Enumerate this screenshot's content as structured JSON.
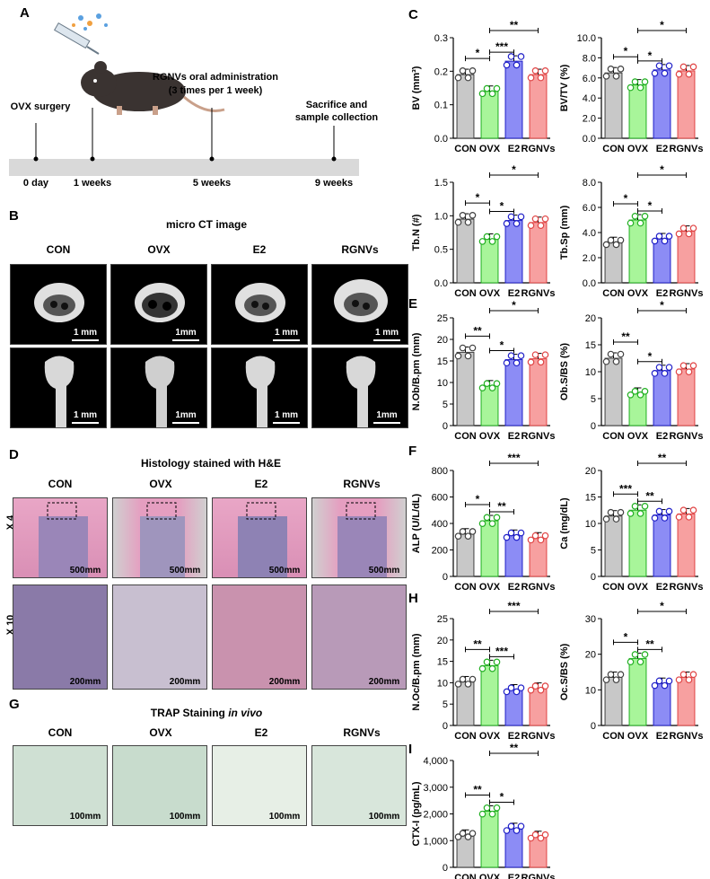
{
  "panels": {
    "A": "A",
    "B": "B",
    "C": "C",
    "D": "D",
    "E": "E",
    "F": "F",
    "G": "G",
    "H": "H",
    "I": "I"
  },
  "timeline": {
    "events": [
      "OVX surgery",
      "RGNVs oral administration",
      "(3 times per 1 week)",
      "Sacrifice and",
      "sample collection"
    ],
    "ticks": [
      "0 day",
      "1 weeks",
      "5 weeks",
      "9 weeks"
    ]
  },
  "microct": {
    "title": "micro CT image",
    "groups": [
      "CON",
      "OVX",
      "E2",
      "RGNVs"
    ],
    "scale_top": [
      "1 mm",
      "1mm",
      "1 mm",
      "1 mm"
    ],
    "scale_bottom": [
      "1 mm",
      "1mm",
      "1 mm",
      "1mm"
    ]
  },
  "histology": {
    "title": "Histology stained with H&E",
    "groups": [
      "CON",
      "OVX",
      "E2",
      "RGNVs"
    ],
    "row_labels": [
      "X 4",
      "X 10"
    ],
    "scale_top": "500mm",
    "scale_bottom": "200mm"
  },
  "trap": {
    "title_main": "TRAP Staining ",
    "title_italic": "in vivo",
    "groups": [
      "CON",
      "OVX",
      "E2",
      "RGNVs"
    ],
    "scale": "100mm"
  },
  "colors": {
    "CON": "#c8c8c8",
    "OVX": "#a8f59a",
    "E2": "#8c8cf5",
    "RGNVs": "#f7a0a0",
    "edge_CON": "#404040",
    "edge_OVX": "#22b022",
    "edge_E2": "#2020c8",
    "edge_RGNVs": "#e04444"
  },
  "chart_data": [
    {
      "id": "BV",
      "type": "bar",
      "ylabel": "BV (mm³)",
      "categories": [
        "CON",
        "OVX",
        "E2",
        "RGNVs"
      ],
      "values": [
        0.19,
        0.14,
        0.23,
        0.19
      ],
      "ylim": [
        0,
        0.3
      ],
      "yticks": [
        "0.0",
        "0.1",
        "0.2",
        "0.3"
      ],
      "sig": [
        {
          "from": 0,
          "to": 1,
          "label": "*"
        },
        {
          "from": 1,
          "to": 2,
          "label": "***"
        },
        {
          "from": 1,
          "to": 3,
          "label": "**"
        }
      ]
    },
    {
      "id": "BVTV",
      "type": "bar",
      "ylabel": "BV/TV (%)",
      "categories": [
        "CON",
        "OVX",
        "E2",
        "RGNVs"
      ],
      "values": [
        6.5,
        5.3,
        6.8,
        6.7
      ],
      "ylim": [
        0,
        10
      ],
      "yticks": [
        "0.0",
        "2.0",
        "4.0",
        "6.0",
        "8.0",
        "10.0"
      ],
      "sig": [
        {
          "from": 0,
          "to": 1,
          "label": "*"
        },
        {
          "from": 1,
          "to": 2,
          "label": "*"
        },
        {
          "from": 1,
          "to": 3,
          "label": "*"
        }
      ]
    },
    {
      "id": "TbN",
      "type": "bar",
      "ylabel": "Tb.N (#)",
      "categories": [
        "CON",
        "OVX",
        "E2",
        "RGNVs"
      ],
      "values": [
        0.95,
        0.65,
        0.93,
        0.9
      ],
      "ylim": [
        0,
        1.5
      ],
      "yticks": [
        "0.0",
        "0.5",
        "1.0",
        "1.5"
      ],
      "sig": [
        {
          "from": 0,
          "to": 1,
          "label": "*"
        },
        {
          "from": 1,
          "to": 2,
          "label": "*"
        },
        {
          "from": 1,
          "to": 3,
          "label": "*"
        }
      ]
    },
    {
      "id": "TbSp",
      "type": "bar",
      "ylabel": "Tb.Sp (mm)",
      "categories": [
        "CON",
        "OVX",
        "E2",
        "RGNVs"
      ],
      "values": [
        3.2,
        5.0,
        3.5,
        4.1
      ],
      "ylim": [
        0,
        8
      ],
      "yticks": [
        "0.0",
        "2.0",
        "4.0",
        "6.0",
        "8.0"
      ],
      "sig": [
        {
          "from": 0,
          "to": 1,
          "label": "*"
        },
        {
          "from": 1,
          "to": 2,
          "label": "*"
        },
        {
          "from": 1,
          "to": 3,
          "label": "*"
        }
      ]
    },
    {
      "id": "NObBpm",
      "type": "bar",
      "ylabel": "N.Ob/B.pm (mm)",
      "categories": [
        "CON",
        "OVX",
        "E2",
        "RGNVs"
      ],
      "values": [
        17,
        9.2,
        15.3,
        15.5
      ],
      "ylim": [
        0,
        25
      ],
      "yticks": [
        "0",
        "5",
        "10",
        "15",
        "20",
        "25"
      ],
      "sig": [
        {
          "from": 0,
          "to": 1,
          "label": "**"
        },
        {
          "from": 1,
          "to": 2,
          "label": "*"
        },
        {
          "from": 1,
          "to": 3,
          "label": "*"
        }
      ]
    },
    {
      "id": "ObSBS",
      "type": "bar",
      "ylabel": "Ob.S/BS (%)",
      "categories": [
        "CON",
        "OVX",
        "E2",
        "RGNVs"
      ],
      "values": [
        12.5,
        6,
        10.2,
        10.5
      ],
      "ylim": [
        0,
        20
      ],
      "yticks": [
        "0",
        "5",
        "10",
        "15",
        "20"
      ],
      "sig": [
        {
          "from": 0,
          "to": 1,
          "label": "**"
        },
        {
          "from": 1,
          "to": 2,
          "label": "*"
        },
        {
          "from": 1,
          "to": 3,
          "label": "*"
        }
      ]
    },
    {
      "id": "ALP",
      "type": "bar",
      "ylabel": "ALP (U/L/dL)",
      "categories": [
        "CON",
        "OVX",
        "E2",
        "RGNVs"
      ],
      "values": [
        320,
        420,
        310,
        290
      ],
      "ylim": [
        0,
        800
      ],
      "yticks": [
        "0",
        "200",
        "400",
        "600",
        "800"
      ],
      "sig": [
        {
          "from": 0,
          "to": 1,
          "label": "*"
        },
        {
          "from": 1,
          "to": 2,
          "label": "**"
        },
        {
          "from": 1,
          "to": 3,
          "label": "***"
        }
      ]
    },
    {
      "id": "Ca",
      "type": "bar",
      "ylabel": "Ca (mg/dL)",
      "categories": [
        "CON",
        "OVX",
        "E2",
        "RGNVs"
      ],
      "values": [
        11.4,
        12.5,
        11.6,
        11.8
      ],
      "ylim": [
        0,
        20
      ],
      "yticks": [
        "0",
        "5",
        "10",
        "15",
        "20"
      ],
      "sig": [
        {
          "from": 0,
          "to": 1,
          "label": "***"
        },
        {
          "from": 1,
          "to": 2,
          "label": "**"
        },
        {
          "from": 1,
          "to": 3,
          "label": "**"
        }
      ]
    },
    {
      "id": "NOcBpm",
      "type": "bar",
      "ylabel": "N.Oc/B.pm (mm)",
      "categories": [
        "CON",
        "OVX",
        "E2",
        "RGNVs"
      ],
      "values": [
        10.2,
        14,
        8.3,
        8.7
      ],
      "ylim": [
        0,
        25
      ],
      "yticks": [
        "0",
        "5",
        "10",
        "15",
        "20",
        "25"
      ],
      "sig": [
        {
          "from": 0,
          "to": 1,
          "label": "**"
        },
        {
          "from": 1,
          "to": 2,
          "label": "***"
        },
        {
          "from": 1,
          "to": 3,
          "label": "***"
        }
      ]
    },
    {
      "id": "OcSBS",
      "type": "bar",
      "ylabel": "Oc.S/BS (%)",
      "categories": [
        "CON",
        "OVX",
        "E2",
        "RGNVs"
      ],
      "values": [
        13.5,
        18.8,
        11.8,
        13.5
      ],
      "ylim": [
        0,
        30
      ],
      "yticks": [
        "0",
        "10",
        "20",
        "30"
      ],
      "sig": [
        {
          "from": 0,
          "to": 1,
          "label": "*"
        },
        {
          "from": 1,
          "to": 2,
          "label": "**"
        },
        {
          "from": 1,
          "to": 3,
          "label": "*"
        }
      ]
    },
    {
      "id": "CTX",
      "type": "bar",
      "ylabel": "CTX-I (pg/mL)",
      "categories": [
        "CON",
        "OVX",
        "E2",
        "RGNVs"
      ],
      "values": [
        1200,
        2100,
        1450,
        1150
      ],
      "ylim": [
        0,
        4000
      ],
      "yticks": [
        "0",
        "1,000",
        "2,000",
        "3,000",
        "4,000"
      ],
      "sig": [
        {
          "from": 0,
          "to": 1,
          "label": "**"
        },
        {
          "from": 1,
          "to": 2,
          "label": "*"
        },
        {
          "from": 1,
          "to": 3,
          "label": "**"
        }
      ]
    }
  ]
}
